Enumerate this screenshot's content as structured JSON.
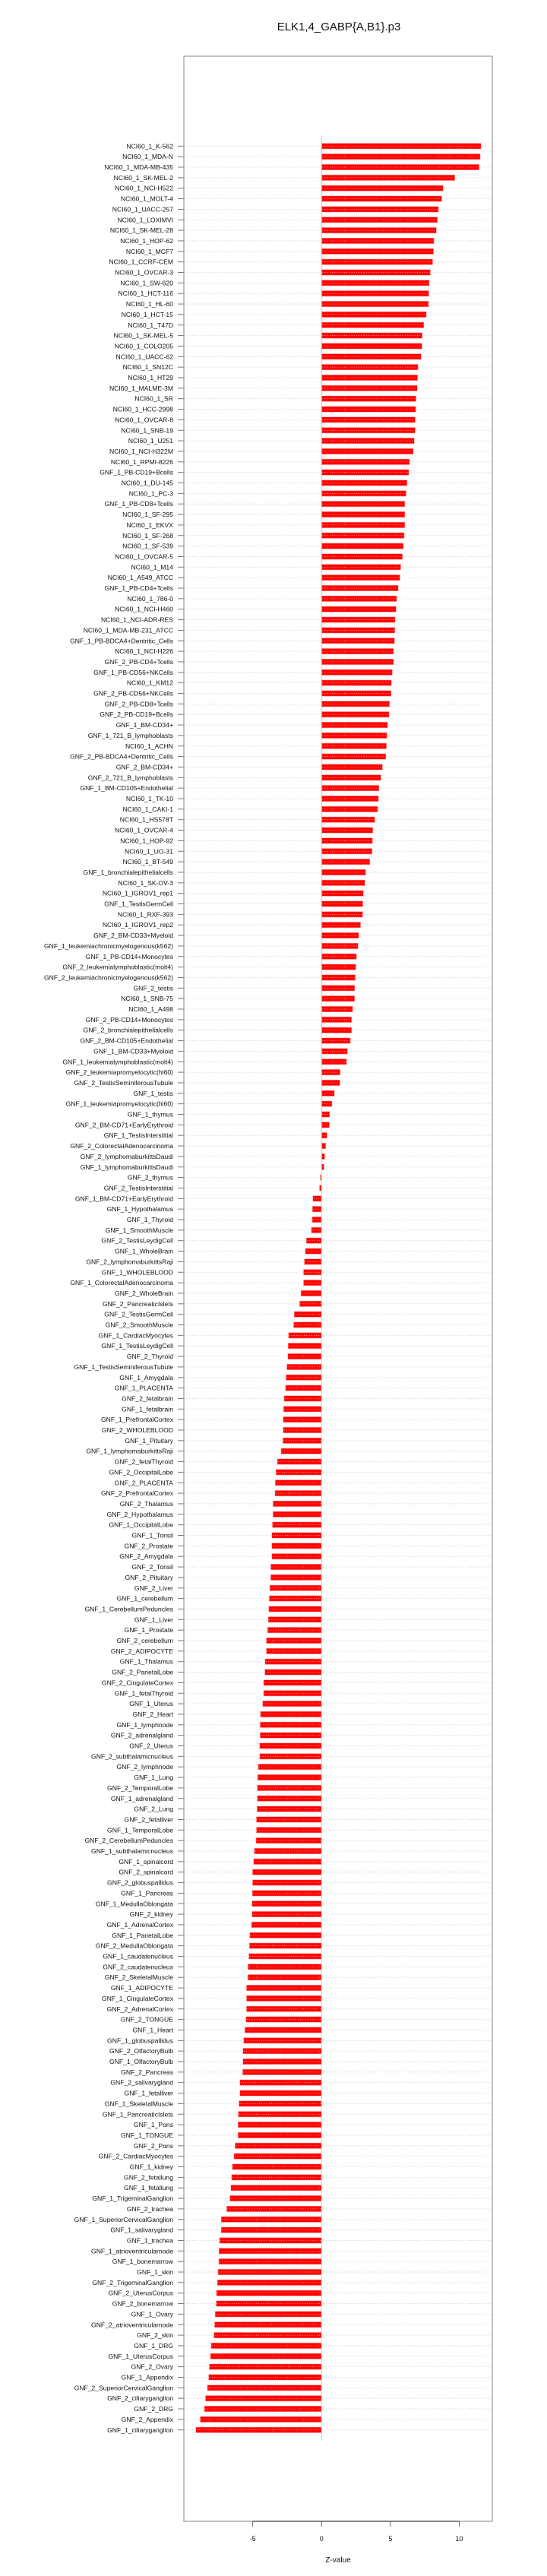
{
  "chart_data": {
    "type": "bar",
    "orientation": "horizontal",
    "title": "ELK1,4_GABP{A,B1}.p3",
    "xlabel": "Z-value",
    "ylabel": "",
    "xlim": [
      -10,
      12.4
    ],
    "xticks": [
      -5,
      0,
      5,
      10
    ],
    "xtick_labels": [
      "-5",
      "0",
      "5",
      "10"
    ],
    "grid": "dotted horizontal per row",
    "bar_color": "#ff0000",
    "zero_line_color": "#90ee90",
    "categories": [
      "NCI60_1_K-562",
      "NCI60_1_MDA-N",
      "NCI60_1_MDA-MB-435",
      "NCI60_1_SK-MEL-2",
      "NCI60_1_NCI-H522",
      "NCI60_1_MOLT-4",
      "NCI60_1_UACC-257",
      "NCI60_1_LOXIMVI",
      "NCI60_1_SK-MEL-28",
      "NCI60_1_HOP-62",
      "NCI60_1_MCF7",
      "NCI60_1_CCRF-CEM",
      "NCI60_1_OVCAR-3",
      "NCI60_1_SW-620",
      "NCI60_1_HCT-116",
      "NCI60_1_HL-60",
      "NCI60_1_HCT-15",
      "NCI60_1_T47D",
      "NCI60_1_SK-MEL-5",
      "NCI60_1_COLO205",
      "NCI60_1_UACC-62",
      "NCI60_1_SN12C",
      "NCI60_1_HT29",
      "NCI60_1_MALME-3M",
      "NCI60_1_SR",
      "NCI60_1_HCC-2998",
      "NCI60_1_OVCAR-8",
      "NCI60_1_SNB-19",
      "NCI60_1_U251",
      "NCI60_1_NCI-H322M",
      "NCI60_1_RPMI-8226",
      "GNF_1_PB-CD19+Bcells",
      "NCI60_1_DU-145",
      "NCI60_1_PC-3",
      "GNF_1_PB-CD8+Tcells",
      "NCI60_1_SF-295",
      "NCI60_1_EKVX",
      "NCI60_1_SF-268",
      "NCI60_1_SF-539",
      "NCI60_1_OVCAR-5",
      "NCI60_1_M14",
      "NCI60_1_A549_ATCC",
      "GNF_1_PB-CD4+Tcells",
      "NCI60_1_786-0",
      "NCI60_1_NCI-H460",
      "NCI60_1_NCI-ADR-RES",
      "NCI60_1_MDA-MB-231_ATCC",
      "GNF_1_PB-BDCA4+Dentritic_Cells",
      "NCI60_1_NCI-H226",
      "GNF_2_PB-CD4+Tcells",
      "GNF_1_PB-CD56+NKCells",
      "NCI60_1_KM12",
      "GNF_2_PB-CD56+NKCells",
      "GNF_2_PB-CD8+Tcells",
      "GNF_2_PB-CD19+Bcells",
      "GNF_1_BM-CD34+",
      "GNF_1_721_B_lymphoblasts",
      "NCI60_1_ACHN",
      "GNF_2_PB-BDCA4+Dentritic_Cells",
      "GNF_2_BM-CD34+",
      "GNF_2_721_B_lymphoblasts",
      "GNF_1_BM-CD105+Endothelial",
      "NCI60_1_TK-10",
      "NCI60_1_CAKI-1",
      "NCI60_1_HS578T",
      "NCI60_1_OVCAR-4",
      "NCI60_1_HOP-92",
      "NCI60_1_UO-31",
      "NCI60_1_BT-549",
      "GNF_1_bronchialepithelialcells",
      "NCI60_1_SK-OV-3",
      "NCI60_1_IGROV1_rep1",
      "GNF_1_TestisGermCell",
      "NCI60_1_RXF-393",
      "NCI60_1_IGROV1_rep2",
      "GNF_2_BM-CD33+Myeloid",
      "GNF_1_leukemiachronicmyelogenous(k562)",
      "GNF_1_PB-CD14+Monocytes",
      "GNF_2_leukemialymphoblastic(molt4)",
      "GNF_2_leukemiachronicmyelogenous(k562)",
      "GNF_2_testis",
      "NCI60_1_SNB-75",
      "NCI60_1_A498",
      "GNF_2_PB-CD14+Monocytes",
      "GNF_2_bronchialepithelialcells",
      "GNF_2_BM-CD105+Endothelial",
      "GNF_1_BM-CD33+Myeloid",
      "GNF_1_leukemialymphoblastic(molt4)",
      "GNF_2_leukemiapromyelocytic(hl60)",
      "GNF_2_TestisSeminiferousTubule",
      "GNF_1_testis",
      "GNF_1_leukemiapromyelocytic(hl60)",
      "GNF_1_thymus",
      "GNF_2_BM-CD71+EarlyErythroid",
      "GNF_1_TestisInterstitial",
      "GNF_2_ColorectalAdenocarcinoma",
      "GNF_2_lymphomaburkittsDaudi",
      "GNF_1_lymphomaburkittsDaudi",
      "GNF_2_thymus",
      "GNF_2_TestisInterstitial",
      "GNF_1_BM-CD71+EarlyErythroid",
      "GNF_1_Hypothalamus",
      "GNF_1_Thyroid",
      "GNF_1_SmoothMuscle",
      "GNF_2_TestisLeydigCell",
      "GNF_1_WholeBrain",
      "GNF_2_lymphomaburkittsRaji",
      "GNF_1_WHOLEBLOOD",
      "GNF_1_ColorectalAdenocarcinoma",
      "GNF_2_WholeBrain",
      "GNF_2_PancreaticIslets",
      "GNF_2_TestisGermCell",
      "GNF_2_SmoothMuscle",
      "GNF_1_CardiacMyocytes",
      "GNF_1_TestisLeydigCell",
      "GNF_2_Thyroid",
      "GNF_1_TestisSeminiferousTubule",
      "GNF_1_Amygdala",
      "GNF_1_PLACENTA",
      "GNF_2_fetalbrain",
      "GNF_1_fetalbrain",
      "GNF_1_PrefrontalCortex",
      "GNF_2_WHOLEBLOOD",
      "GNF_1_Pituitary",
      "GNF_1_lymphomaburkittsRaji",
      "GNF_2_fetalThyroid",
      "GNF_2_OccipitalLobe",
      "GNF_2_PLACENTA",
      "GNF_2_PrefrontalCortex",
      "GNF_2_Thalamus",
      "GNF_2_Hypothalamus",
      "GNF_1_OccipitalLobe",
      "GNF_1_Tonsil",
      "GNF_2_Prostate",
      "GNF_2_Amygdala",
      "GNF_2_Tonsil",
      "GNF_2_Pituitary",
      "GNF_2_Liver",
      "GNF_1_cerebellum",
      "GNF_1_CerebellumPeduncles",
      "GNF_1_Liver",
      "GNF_1_Prostate",
      "GNF_2_cerebellum",
      "GNF_2_ADIPOCYTE",
      "GNF_1_Thalamus",
      "GNF_2_ParietalLobe",
      "GNF_2_CingulateCortex",
      "GNF_1_fetalThyroid",
      "GNF_1_Uterus",
      "GNF_2_Heart",
      "GNF_1_lymphnode",
      "GNF_2_adrenalgland",
      "GNF_2_Uterus",
      "GNF_2_subthalamicnucleus",
      "GNF_2_lymphnode",
      "GNF_1_Lung",
      "GNF_2_TemporalLobe",
      "GNF_1_adrenalgland",
      "GNF_2_Lung",
      "GNF_2_fetalliver",
      "GNF_1_TemporalLobe",
      "GNF_2_CerebellumPeduncles",
      "GNF_1_subthalamicnucleus",
      "GNF_1_spinalcord",
      "GNF_2_spinalcord",
      "GNF_2_globuspallidus",
      "GNF_1_Pancreas",
      "GNF_1_MedullaOblongata",
      "GNF_2_kidney",
      "GNF_1_AdrenalCortex",
      "GNF_1_ParietalLobe",
      "GNF_2_MedullaOblongata",
      "GNF_1_caudatenucleus",
      "GNF_2_caudatenucleus",
      "GNF_2_SkeletalMuscle",
      "GNF_1_ADIPOCYTE",
      "GNF_1_CingulateCortex",
      "GNF_2_AdrenalCortex",
      "GNF_2_TONGUE",
      "GNF_1_Heart",
      "GNF_1_globuspallidus",
      "GNF_2_OlfactoryBulb",
      "GNF_1_OlfactoryBulb",
      "GNF_2_Pancreas",
      "GNF_2_salivarygland",
      "GNF_1_fetalliver",
      "GNF_1_SkeletalMuscle",
      "GNF_1_PancreaticIslets",
      "GNF_1_Pons",
      "GNF_1_TONGUE",
      "GNF_2_Pons",
      "GNF_2_CardiacMyocytes",
      "GNF_1_kidney",
      "GNF_2_fetallung",
      "GNF_1_fetallung",
      "GNF_1_TrigeminalGanglion",
      "GNF_2_trachea",
      "GNF_1_SuperiorCervicalGanglion",
      "GNF_1_salivarygland",
      "GNF_1_trachea",
      "GNF_1_atrioventricularnode",
      "GNF_1_bonemarrow",
      "GNF_1_skin",
      "GNF_2_TrigeminalGanglion",
      "GNF_2_UterusCorpus",
      "GNF_2_bonemarrow",
      "GNF_1_Ovary",
      "GNF_2_atrioventricularnode",
      "GNF_2_skin",
      "GNF_1_DRG",
      "GNF_1_UterusCorpus",
      "GNF_2_Ovary",
      "GNF_1_Appendix",
      "GNF_2_SuperiorCervicalGanglion",
      "GNF_2_ciliaryganglion",
      "GNF_2_DRG",
      "GNF_2_Appendix",
      "GNF_1_ciliaryganglion"
    ],
    "values": [
      11.58,
      11.52,
      11.44,
      9.68,
      8.83,
      8.73,
      8.49,
      8.41,
      8.34,
      8.16,
      8.13,
      8.07,
      7.9,
      7.82,
      7.79,
      7.77,
      7.61,
      7.43,
      7.31,
      7.29,
      7.23,
      7.0,
      6.97,
      6.95,
      6.86,
      6.84,
      6.8,
      6.8,
      6.73,
      6.66,
      6.39,
      6.34,
      6.21,
      6.14,
      6.05,
      6.05,
      6.05,
      6.0,
      5.94,
      5.87,
      5.75,
      5.69,
      5.57,
      5.46,
      5.41,
      5.34,
      5.32,
      5.3,
      5.23,
      5.23,
      5.14,
      5.07,
      5.05,
      4.94,
      4.9,
      4.8,
      4.75,
      4.71,
      4.67,
      4.42,
      4.31,
      4.17,
      4.13,
      4.08,
      3.87,
      3.72,
      3.7,
      3.67,
      3.51,
      3.21,
      3.15,
      3.04,
      3.0,
      2.99,
      2.83,
      2.7,
      2.65,
      2.54,
      2.49,
      2.45,
      2.41,
      2.4,
      2.26,
      2.18,
      2.18,
      2.09,
      1.88,
      1.82,
      1.35,
      1.33,
      0.93,
      0.76,
      0.59,
      0.57,
      0.4,
      0.3,
      0.23,
      0.18,
      -0.09,
      -0.15,
      -0.63,
      -0.66,
      -0.68,
      -0.74,
      -1.11,
      -1.18,
      -1.25,
      -1.31,
      -1.31,
      -1.5,
      -1.59,
      -1.99,
      -2.03,
      -2.4,
      -2.43,
      -2.45,
      -2.52,
      -2.58,
      -2.62,
      -2.72,
      -2.76,
      -2.79,
      -2.79,
      -2.81,
      -2.94,
      -3.21,
      -3.31,
      -3.36,
      -3.38,
      -3.53,
      -3.53,
      -3.57,
      -3.61,
      -3.61,
      -3.61,
      -3.69,
      -3.69,
      -3.76,
      -3.8,
      -3.83,
      -3.87,
      -3.92,
      -4.01,
      -4.01,
      -4.1,
      -4.12,
      -4.21,
      -4.21,
      -4.28,
      -4.44,
      -4.46,
      -4.46,
      -4.5,
      -4.5,
      -4.6,
      -4.64,
      -4.67,
      -4.67,
      -4.69,
      -4.73,
      -4.73,
      -4.76,
      -4.88,
      -4.94,
      -5.01,
      -5.01,
      -5.03,
      -5.05,
      -5.05,
      -5.09,
      -5.21,
      -5.24,
      -5.28,
      -5.34,
      -5.35,
      -5.45,
      -5.45,
      -5.45,
      -5.49,
      -5.57,
      -5.66,
      -5.71,
      -5.71,
      -5.73,
      -5.93,
      -5.93,
      -6.0,
      -6.05,
      -6.07,
      -6.07,
      -6.28,
      -6.36,
      -6.48,
      -6.53,
      -6.59,
      -6.66,
      -6.89,
      -7.29,
      -7.29,
      -7.41,
      -7.45,
      -7.46,
      -7.52,
      -7.57,
      -7.63,
      -7.65,
      -7.73,
      -7.77,
      -7.82,
      -8.02,
      -8.07,
      -8.15,
      -8.2,
      -8.29,
      -8.43,
      -8.51,
      -8.81,
      -9.13
    ]
  }
}
